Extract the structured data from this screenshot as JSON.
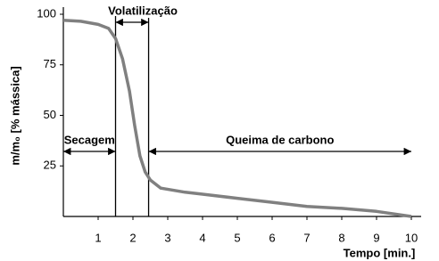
{
  "chart_data": {
    "type": "line",
    "ylabel": "m/m₀ [% mássica]",
    "xlabel": "Tempo [min.]",
    "xlim": [
      0,
      10
    ],
    "xticks": [
      1,
      2,
      3,
      4,
      5,
      6,
      7,
      8,
      9,
      10
    ],
    "ylim": [
      0,
      100
    ],
    "yticks": [
      25,
      50,
      75,
      100
    ],
    "series": [
      {
        "color": "#808080",
        "x": [
          0,
          0.5,
          1,
          1.3,
          1.5,
          1.7,
          1.9,
          2.05,
          2.2,
          2.35,
          2.5,
          2.8,
          3.5,
          4,
          5,
          6,
          7,
          8,
          9,
          10
        ],
        "values": [
          97,
          96.5,
          95,
          93,
          88,
          78,
          62,
          45,
          30,
          22,
          18,
          14,
          12,
          11,
          9,
          7,
          5,
          4,
          2.5,
          0
        ]
      }
    ],
    "annotations": [
      {
        "text": "Secagem",
        "from": 0,
        "to": 1.5
      },
      {
        "text": "Volatilização",
        "from": 1.5,
        "to": 2.45
      },
      {
        "text": "Queima de carbono",
        "from": 2.45,
        "to": 10
      }
    ]
  }
}
